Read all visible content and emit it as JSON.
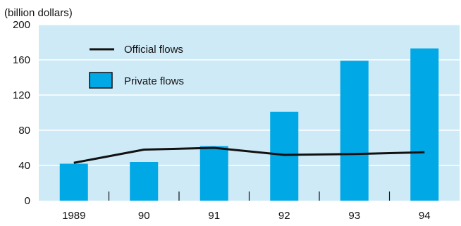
{
  "chart_data": {
    "type": "bar",
    "title": "",
    "unit_label": "(billion dollars)",
    "categories": [
      "1989",
      "90",
      "91",
      "92",
      "93",
      "94"
    ],
    "ylim": [
      0,
      200
    ],
    "yticks": [
      0,
      40,
      80,
      120,
      160,
      200
    ],
    "grid": "horizontal",
    "legend_position": "top-left",
    "series": [
      {
        "name": "Private flows",
        "kind": "bar",
        "color": "#00a8e6",
        "values": [
          42,
          44,
          62,
          101,
          159,
          173
        ]
      },
      {
        "name": "Official flows",
        "kind": "line",
        "color": "#111111",
        "values": [
          43,
          58,
          60,
          52,
          53,
          55
        ]
      }
    ],
    "colors": {
      "plot_background": "#cfeaf7",
      "grid": "#ffffff"
    }
  }
}
